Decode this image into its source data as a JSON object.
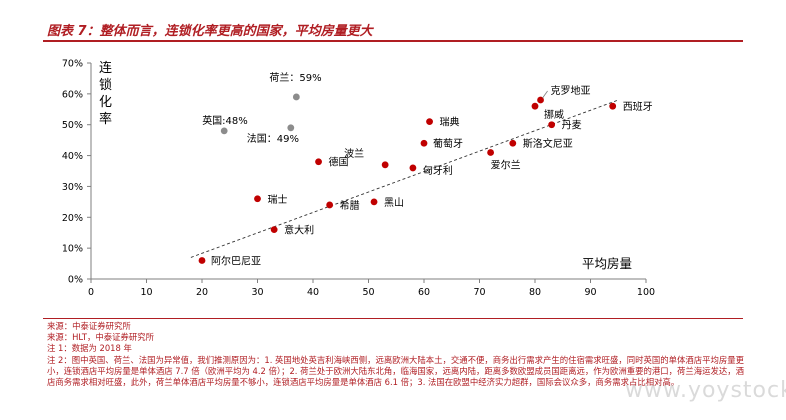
{
  "title": "图表 7：整体而言，连锁化率更高的国家，平均房量更大",
  "chart_data": {
    "type": "scatter",
    "ylabel": "连锁化率",
    "xlabel": "平均房量",
    "xlim": [
      0,
      100
    ],
    "ylim": [
      0,
      70
    ],
    "x_ticks": [
      "0",
      "10",
      "20",
      "30",
      "40",
      "50",
      "60",
      "70",
      "80",
      "90",
      "100"
    ],
    "y_ticks": [
      "0%",
      "10%",
      "20%",
      "30%",
      "40%",
      "50%",
      "60%",
      "70%"
    ],
    "trendline": {
      "style": "dashed",
      "from": [
        18,
        7
      ],
      "to": [
        95,
        58
      ]
    },
    "points": [
      {
        "label": "阿尔巴尼亚",
        "x": 20,
        "y": 6,
        "color": "#c00000"
      },
      {
        "label": "瑞士",
        "x": 30,
        "y": 26,
        "color": "#c00000"
      },
      {
        "label": "意大利",
        "x": 33,
        "y": 16,
        "color": "#c00000"
      },
      {
        "label": "希腊",
        "x": 43,
        "y": 24,
        "color": "#c00000"
      },
      {
        "label": "黑山",
        "x": 51,
        "y": 25,
        "color": "#c00000"
      },
      {
        "label": "德国",
        "x": 41,
        "y": 38,
        "color": "#c00000"
      },
      {
        "label": "波兰",
        "x": 53,
        "y": 37,
        "color": "#c00000"
      },
      {
        "label": "匈牙利",
        "x": 58,
        "y": 36,
        "color": "#c00000"
      },
      {
        "label": "葡萄牙",
        "x": 60,
        "y": 44,
        "color": "#c00000"
      },
      {
        "label": "瑞典",
        "x": 61,
        "y": 51,
        "color": "#c00000"
      },
      {
        "label": "爱尔兰",
        "x": 72,
        "y": 41,
        "color": "#c00000"
      },
      {
        "label": "斯洛文尼亚",
        "x": 76,
        "y": 44,
        "color": "#c00000"
      },
      {
        "label": "挪威",
        "x": 80,
        "y": 56,
        "color": "#c00000"
      },
      {
        "label": "克罗地亚",
        "x": 81,
        "y": 58,
        "color": "#c00000"
      },
      {
        "label": "丹麦",
        "x": 83,
        "y": 50,
        "color": "#c00000"
      },
      {
        "label": "西班牙",
        "x": 94,
        "y": 56,
        "color": "#c00000"
      },
      {
        "label": "英国:48%",
        "x": 24,
        "y": 48,
        "color": "#8c8c8c"
      },
      {
        "label": "法国：49%",
        "x": 36,
        "y": 49,
        "color": "#8c8c8c"
      },
      {
        "label": "荷兰：59%",
        "x": 37,
        "y": 59,
        "color": "#8c8c8c"
      }
    ]
  },
  "notes": [
    "来源：中泰证券研究所",
    "来源：HLT，中泰证券研究所",
    "注 1：数据为 2018 年",
    "注 2：图中英国、荷兰、法国为异常值，我们推测原因为：1. 英国地处英吉利海峡西侧，远离欧洲大陆本土，交通不便，商务出行需求产生的住宿需求旺盛，同时英国的单体酒店平均房量更小，连锁酒店平均房量是单体酒店 7.7 倍（欧洲平均为 4.2 倍）；2. 荷兰处于欧洲大陆东北角，临海国家，远离内陆，距离多数欧盟成员国距离远，作为欧洲重要的港口，荷兰海运发达，酒店商务需求相对旺盛，此外，荷兰单体酒店平均房量不够小，连锁酒店平均房量是单体酒店 6.1 倍；3. 法国在欧盟中经济实力超群，国际会议众多，商务需求占比相对高。"
  ],
  "watermark": "www.yoystock.com"
}
